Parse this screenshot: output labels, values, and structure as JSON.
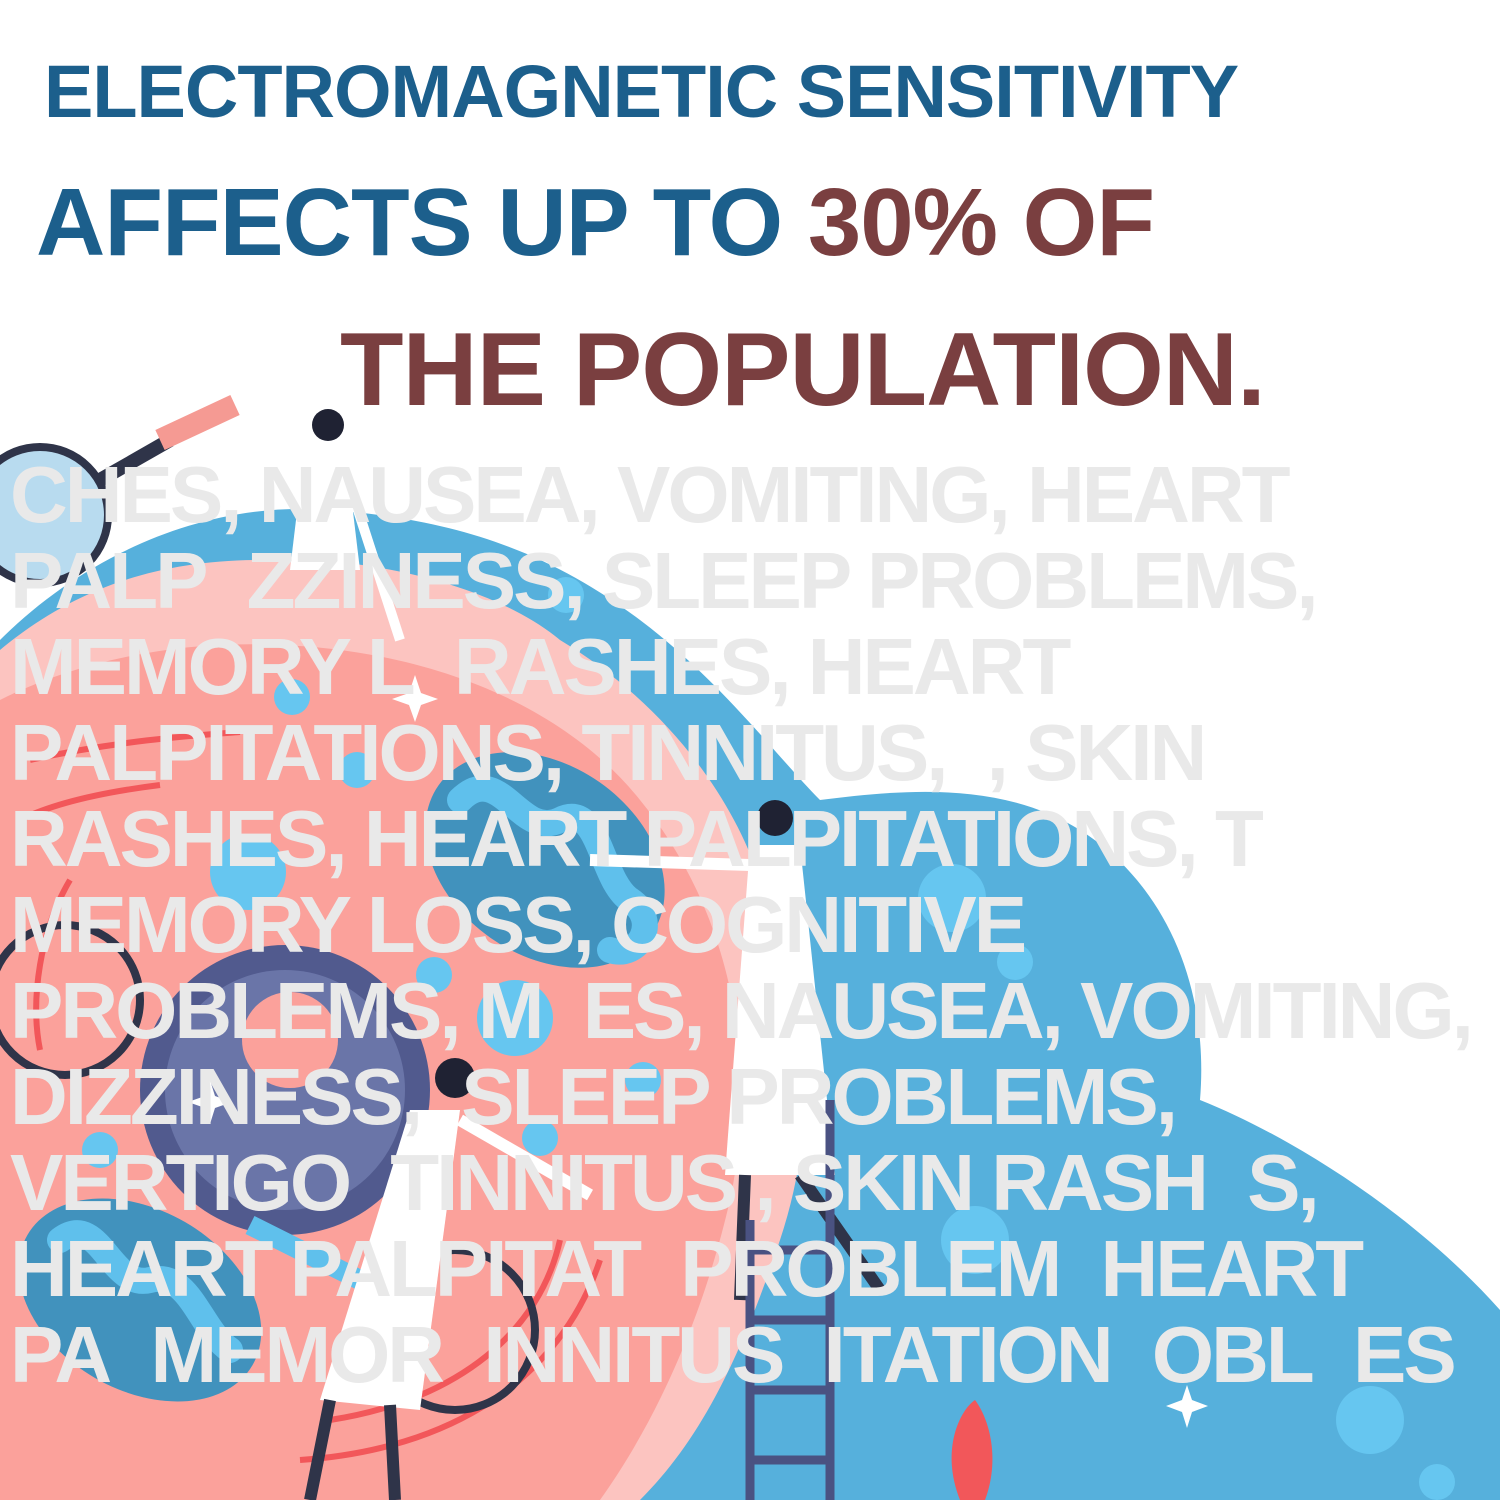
{
  "headline": {
    "line1": "ELECTROMAGNETIC SENSITIVITY",
    "line2_prefix": "AFFECTS UP TO ",
    "line2_highlight": "30% OF",
    "line3": "THE POPULATION."
  },
  "background_text": [
    "CHES, NAUSEA, VOMITING, HEART PALP",
    "ZZINESS, SLEEP PROBLEMS, MEMORY L",
    "RASHES, HEART PALPITATIONS, TINNITUS,",
    ", SKIN RASHES, HEART PALPITATIONS, T",
    "MEMORY LOSS, COGNITIVE PROBLEMS, M",
    "ES, NAUSEA, VOMITING, DIZZINESS,",
    "SLEEP PROBLEMS, VERTIGO",
    "TINNITUS , SKIN RASH",
    "S, HEART PALPITAT",
    "PROBLEM",
    "HEART PA",
    "MEMOR",
    "INNITUS",
    "ITATION",
    "OBL",
    "ES"
  ],
  "colors": {
    "headline_blue": "#1c5f8c",
    "headline_red": "#7a3f40",
    "background_text": "#e9e9e9",
    "blob_blue": "#56b0dc",
    "cell_pink": "#fba19b"
  }
}
